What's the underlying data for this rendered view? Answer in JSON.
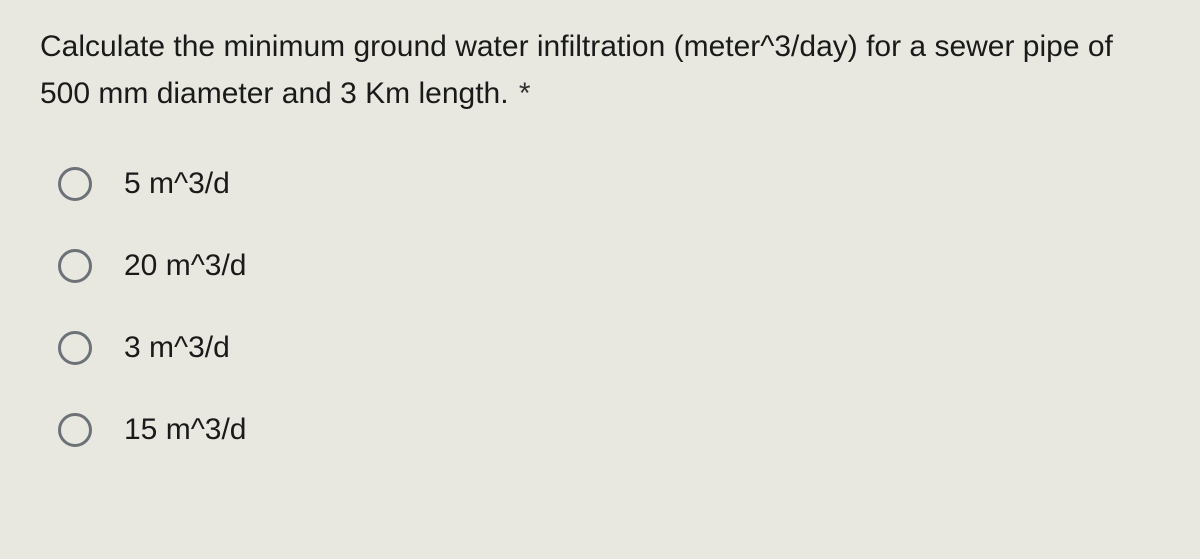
{
  "question": {
    "text": "Calculate the minimum ground water infiltration (meter^3/day) for a sewer pipe of 500 mm diameter and 3 Km length.",
    "required_marker": "*"
  },
  "options": [
    {
      "label": "5 m^3/d"
    },
    {
      "label": "20 m^3/d"
    },
    {
      "label": "3 m^3/d"
    },
    {
      "label": "15 m^3/d"
    }
  ],
  "colors": {
    "background": "#e8e8e0",
    "text": "#1a1a1a",
    "radio_border": "#6d7278"
  },
  "typography": {
    "font_family": "Arial, sans-serif",
    "question_fontsize": 30,
    "option_fontsize": 30
  }
}
